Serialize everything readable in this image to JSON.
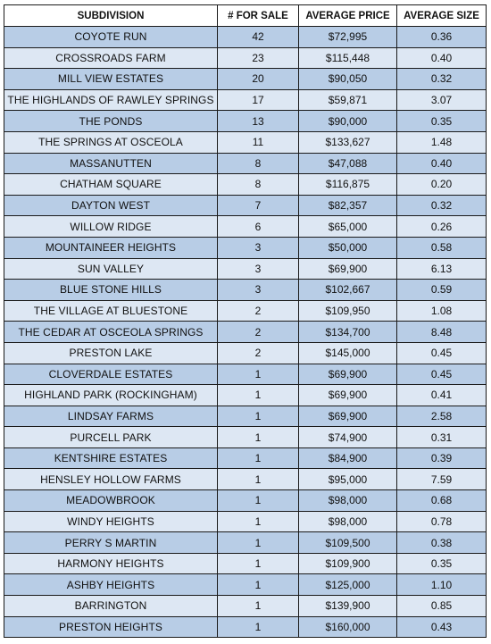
{
  "table": {
    "headers": [
      "SUBDIVISION",
      "# FOR SALE",
      "AVERAGE PRICE",
      "AVERAGE SIZE"
    ],
    "row_colors": {
      "odd": "#b8cde6",
      "even": "#dde7f3"
    },
    "rows": [
      [
        "COYOTE RUN",
        "42",
        "$72,995",
        "0.36"
      ],
      [
        "CROSSROADS FARM",
        "23",
        "$115,448",
        "0.40"
      ],
      [
        "MILL VIEW ESTATES",
        "20",
        "$90,050",
        "0.32"
      ],
      [
        "THE HIGHLANDS OF RAWLEY SPRINGS",
        "17",
        "$59,871",
        "3.07"
      ],
      [
        "THE PONDS",
        "13",
        "$90,000",
        "0.35"
      ],
      [
        "THE SPRINGS AT OSCEOLA",
        "11",
        "$133,627",
        "1.48"
      ],
      [
        "MASSANUTTEN",
        "8",
        "$47,088",
        "0.40"
      ],
      [
        "CHATHAM SQUARE",
        "8",
        "$116,875",
        "0.20"
      ],
      [
        "DAYTON WEST",
        "7",
        "$82,357",
        "0.32"
      ],
      [
        "WILLOW RIDGE",
        "6",
        "$65,000",
        "0.26"
      ],
      [
        "MOUNTAINEER HEIGHTS",
        "3",
        "$50,000",
        "0.58"
      ],
      [
        "SUN VALLEY",
        "3",
        "$69,900",
        "6.13"
      ],
      [
        "BLUE STONE HILLS",
        "3",
        "$102,667",
        "0.59"
      ],
      [
        "THE VILLAGE AT BLUESTONE",
        "2",
        "$109,950",
        "1.08"
      ],
      [
        "THE CEDAR AT OSCEOLA SPRINGS",
        "2",
        "$134,700",
        "8.48"
      ],
      [
        "PRESTON LAKE",
        "2",
        "$145,000",
        "0.45"
      ],
      [
        "CLOVERDALE ESTATES",
        "1",
        "$69,900",
        "0.45"
      ],
      [
        "HIGHLAND PARK (ROCKINGHAM)",
        "1",
        "$69,900",
        "0.41"
      ],
      [
        "LINDSAY FARMS",
        "1",
        "$69,900",
        "2.58"
      ],
      [
        "PURCELL PARK",
        "1",
        "$74,900",
        "0.31"
      ],
      [
        "KENTSHIRE ESTATES",
        "1",
        "$84,900",
        "0.39"
      ],
      [
        "HENSLEY HOLLOW FARMS",
        "1",
        "$95,000",
        "7.59"
      ],
      [
        "MEADOWBROOK",
        "1",
        "$98,000",
        "0.68"
      ],
      [
        "WINDY HEIGHTS",
        "1",
        "$98,000",
        "0.78"
      ],
      [
        "PERRY S MARTIN",
        "1",
        "$109,500",
        "0.38"
      ],
      [
        "HARMONY HEIGHTS",
        "1",
        "$109,900",
        "0.35"
      ],
      [
        "ASHBY HEIGHTS",
        "1",
        "$125,000",
        "1.10"
      ],
      [
        "BARRINGTON",
        "1",
        "$139,900",
        "0.85"
      ],
      [
        "PRESTON HEIGHTS",
        "1",
        "$160,000",
        "0.43"
      ]
    ]
  }
}
